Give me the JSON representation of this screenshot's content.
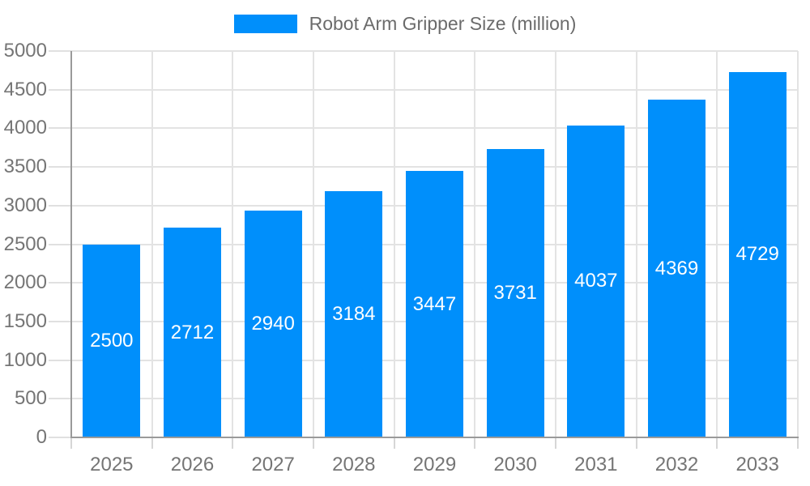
{
  "chart_data": {
    "type": "bar",
    "title": "Robot Arm Gripper Size (million)",
    "categories": [
      "2025",
      "2026",
      "2027",
      "2028",
      "2029",
      "2030",
      "2031",
      "2032",
      "2033"
    ],
    "series": [
      {
        "name": "Robot Arm Gripper Size (million)",
        "values": [
          2500,
          2712,
          2940,
          3184,
          3447,
          3731,
          4037,
          4369,
          4729
        ]
      }
    ],
    "xlabel": "",
    "ylabel": "",
    "ylim": [
      0,
      5000
    ],
    "ytick_step": 500,
    "grid": true,
    "legend_position": "top-center",
    "data_labels_position": "inside-center"
  },
  "colors": {
    "bar": "#008FFB",
    "bar_label": "#FFFFFF",
    "axis_label": "#757575",
    "legend_text": "#6B6B6B",
    "grid_line": "#E3E3E3",
    "axis_line": "#9A9A9A",
    "tick_line": "#D6D6D6",
    "background": "#FFFFFF"
  }
}
